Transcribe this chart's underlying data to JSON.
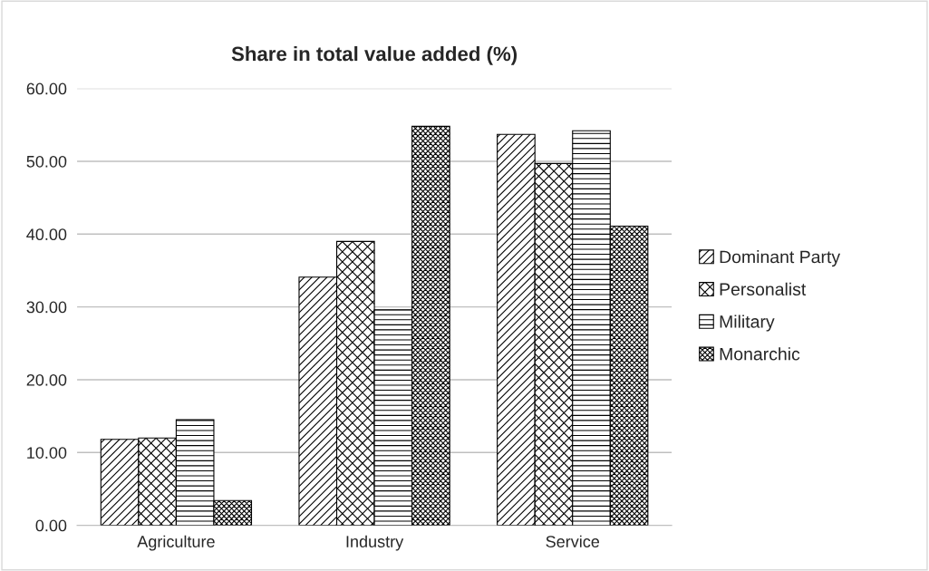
{
  "chart_data": {
    "type": "bar",
    "title": "Share in total value added (%)",
    "categories": [
      "Agriculture",
      "Industry",
      "Service"
    ],
    "series": [
      {
        "name": "Dominant Party",
        "color": "#000000",
        "values": [
          11.8,
          34.1,
          53.7
        ]
      },
      {
        "name": "Personalist",
        "color": "#000000",
        "values": [
          12.0,
          39.0,
          49.7
        ]
      },
      {
        "name": "Military",
        "color": "#000000",
        "values": [
          14.5,
          29.6,
          54.2
        ]
      },
      {
        "name": "Monarchic",
        "color": "#000000",
        "values": [
          3.4,
          54.8,
          41.1
        ]
      }
    ],
    "ylim": [
      0,
      60
    ],
    "yticks": [
      {
        "value": 0,
        "label": "0.00"
      },
      {
        "value": 10,
        "label": "10.00"
      },
      {
        "value": 20,
        "label": "20.00"
      },
      {
        "value": 30,
        "label": "30.00"
      },
      {
        "value": 40,
        "label": "40.00"
      },
      {
        "value": 50,
        "label": "50.00"
      },
      {
        "value": 60,
        "label": "60.00"
      }
    ],
    "grid": "y",
    "legend": "right"
  }
}
